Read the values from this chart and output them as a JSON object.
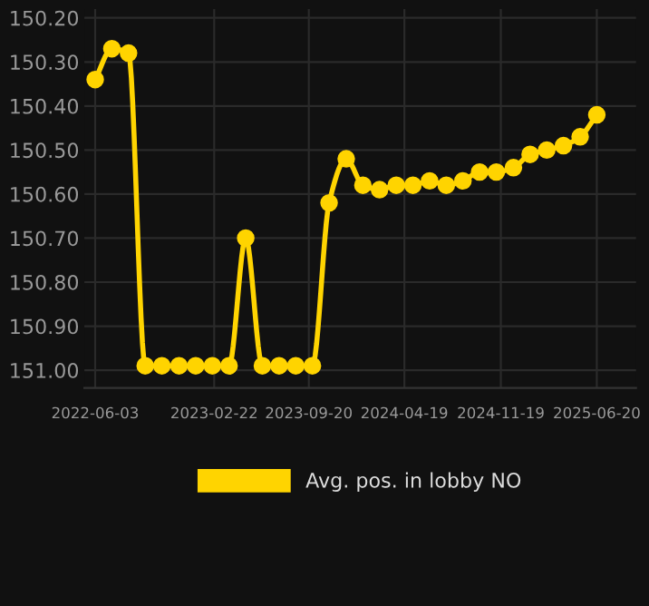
{
  "chart_data": {
    "type": "line",
    "x": [
      "2022-06-03",
      "2022-07-10",
      "2022-08-16",
      "2022-09-22",
      "2022-10-29",
      "2022-12-06",
      "2023-01-12",
      "2023-02-18",
      "2023-03-27",
      "2023-05-03",
      "2023-06-09",
      "2023-07-16",
      "2023-08-22",
      "2023-09-28",
      "2023-11-04",
      "2023-12-12",
      "2024-01-18",
      "2024-02-24",
      "2024-04-01",
      "2024-05-08",
      "2024-06-14",
      "2024-07-21",
      "2024-08-27",
      "2024-10-03",
      "2024-11-09",
      "2024-12-17",
      "2025-01-23",
      "2025-03-01",
      "2025-04-07",
      "2025-05-14",
      "2025-06-20"
    ],
    "series": [
      {
        "name": "Avg. pos. in lobby NO",
        "color": "#ffd400",
        "values": [
          150.34,
          150.27,
          150.28,
          150.99,
          150.99,
          150.99,
          150.99,
          150.99,
          150.99,
          150.7,
          150.99,
          150.99,
          150.99,
          150.99,
          150.62,
          150.52,
          150.58,
          150.59,
          150.58,
          150.58,
          150.57,
          150.58,
          150.57,
          150.55,
          150.55,
          150.54,
          150.51,
          150.5,
          150.49,
          150.47,
          150.42
        ]
      }
    ],
    "ylim": [
      151.04,
      150.18
    ],
    "yticks": [
      {
        "value": 150.2,
        "label": "150.20"
      },
      {
        "value": 150.3,
        "label": "150.30"
      },
      {
        "value": 150.4,
        "label": "150.40"
      },
      {
        "value": 150.5,
        "label": "150.50"
      },
      {
        "value": 150.6,
        "label": "150.60"
      },
      {
        "value": 150.7,
        "label": "150.70"
      },
      {
        "value": 150.8,
        "label": "150.80"
      },
      {
        "value": 150.9,
        "label": "150.90"
      },
      {
        "value": 151.0,
        "label": "151.00"
      }
    ],
    "xlim": [
      "2022-05-10",
      "2025-09-15"
    ],
    "xticks": [
      "2022-06-03",
      "2023-02-22",
      "2023-09-20",
      "2024-04-19",
      "2024-11-19",
      "2025-06-20"
    ],
    "grid": true,
    "legend": "bottom",
    "marker": "circle",
    "line_style": "solid"
  }
}
